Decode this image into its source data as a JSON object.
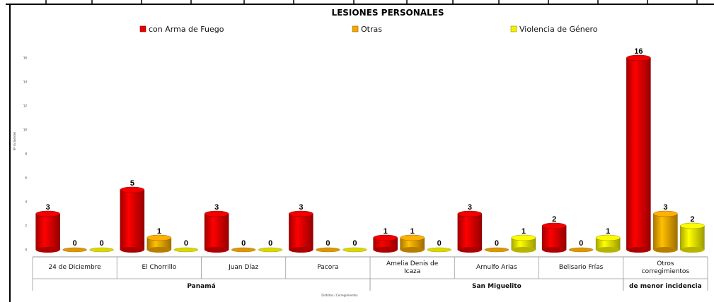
{
  "chart_data": {
    "type": "bar",
    "title": "LESIONES PERSONALES",
    "ylabel": "Nº incidentes",
    "xlabel": "Distritos / Corregimientos",
    "ylim": [
      0,
      16
    ],
    "yticks": [
      0,
      2,
      4,
      6,
      8,
      10,
      12,
      14,
      16
    ],
    "legend_position": "top",
    "categories": [
      "24 de Diciembre",
      "El Chorrillo",
      "Juan Díaz",
      "Pacora",
      "Amelia Denis de Icaza",
      "Arnulfo Arias",
      "Belisario Frías",
      "Otros corregimientos"
    ],
    "groups": [
      {
        "label": "Panamá",
        "span": [
          0,
          3
        ]
      },
      {
        "label": "San Miguelito",
        "span": [
          4,
          6
        ]
      },
      {
        "label": "de menor incidencia",
        "span": [
          7,
          7
        ]
      }
    ],
    "series": [
      {
        "name": "con Arma de Fuego",
        "color": "#e60000",
        "values": [
          3,
          5,
          3,
          3,
          1,
          3,
          2,
          16
        ]
      },
      {
        "name": "Otras",
        "color": "#f5a800",
        "values": [
          0,
          1,
          0,
          0,
          1,
          0,
          0,
          3
        ]
      },
      {
        "name": "Violencia de Género",
        "color": "#f2f000",
        "values": [
          0,
          0,
          0,
          0,
          0,
          1,
          1,
          2
        ]
      }
    ]
  }
}
